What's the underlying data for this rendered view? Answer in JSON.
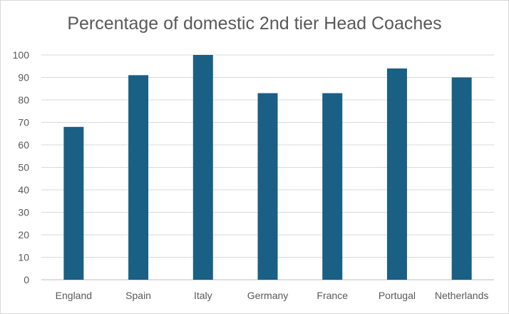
{
  "chart_data": {
    "type": "bar",
    "title": "Percentage of domestic 2nd tier Head Coaches",
    "xlabel": "",
    "ylabel": "",
    "categories": [
      "England",
      "Spain",
      "Italy",
      "Germany",
      "France",
      "Portugal",
      "Netherlands"
    ],
    "values": [
      68,
      91,
      100,
      83,
      83,
      94,
      90
    ],
    "ylim": [
      0,
      100
    ],
    "yticks": [
      0,
      10,
      20,
      30,
      40,
      50,
      60,
      70,
      80,
      90,
      100
    ],
    "grid": true,
    "legend": "none",
    "bar_color": "#1a5f84",
    "grid_color": "#d9d9d9"
  }
}
